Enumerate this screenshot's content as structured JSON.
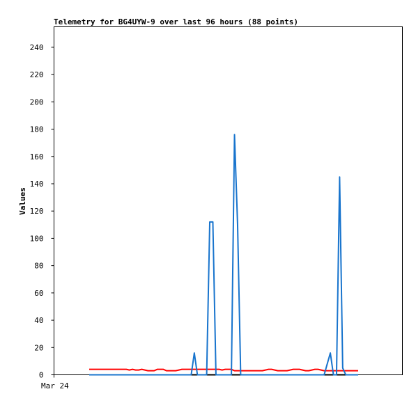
{
  "chart_data": {
    "type": "line",
    "title": "Telemetry for BG4UYW-9 over last 96 hours (88 points)",
    "xlabel": "",
    "ylabel": "Values",
    "x_tick_labels": [
      "Mar 24"
    ],
    "ylim": [
      0,
      255
    ],
    "yticks": [
      0,
      20,
      40,
      60,
      80,
      100,
      120,
      140,
      160,
      180,
      200,
      220,
      240
    ],
    "grid": false,
    "series": [
      {
        "color": "#000000",
        "values": [
          0,
          0,
          0,
          0,
          0,
          0,
          0,
          0,
          0,
          0,
          0,
          0,
          0,
          0,
          0,
          0,
          0,
          0,
          0,
          0,
          0,
          0,
          0,
          0,
          0,
          0,
          0,
          0,
          0,
          0,
          0,
          0,
          0,
          0,
          0,
          0,
          0,
          0,
          0,
          0,
          0,
          0,
          0,
          0,
          0,
          0,
          0,
          0,
          0,
          0,
          0,
          0,
          0,
          0,
          0,
          0,
          0,
          0,
          0,
          0,
          0,
          0,
          0,
          0,
          0,
          0,
          0,
          0,
          0,
          0,
          0,
          0,
          0,
          0,
          0,
          0,
          0,
          0,
          0,
          0,
          0,
          0,
          0,
          0,
          0,
          0,
          0,
          0
        ]
      },
      {
        "color": "#ff0000",
        "values": [
          4,
          4,
          4,
          4,
          4,
          4,
          4,
          4,
          4,
          4,
          4,
          4,
          4,
          3.5,
          4,
          3.5,
          3.5,
          4,
          3.5,
          3,
          3,
          3,
          4,
          4,
          4,
          3,
          3,
          3,
          3,
          3.5,
          4,
          4,
          4,
          4,
          4,
          4,
          4,
          4,
          4,
          4,
          4,
          4,
          4,
          3.5,
          4,
          4,
          4,
          3,
          3,
          3,
          3,
          3,
          3,
          3,
          3,
          3,
          3,
          3.5,
          4,
          4,
          3.5,
          3,
          3,
          3,
          3,
          3.5,
          4,
          4,
          4,
          3.5,
          3,
          3,
          3.5,
          4,
          4,
          3.5,
          3,
          3,
          3,
          3,
          3,
          3,
          3,
          3,
          3,
          3,
          3,
          3
        ]
      },
      {
        "color": "#1874cd",
        "values": [
          0,
          0,
          0,
          0,
          0,
          0,
          0,
          0,
          0,
          0,
          0,
          0,
          0,
          0,
          0,
          0,
          0,
          0,
          0,
          0,
          0,
          0,
          0,
          0,
          0,
          0,
          0,
          0,
          0,
          0,
          0,
          0,
          0,
          0,
          16,
          0,
          0,
          0,
          0,
          112,
          112,
          0,
          0,
          0,
          0,
          0,
          0,
          176,
          110,
          0,
          0,
          0,
          0,
          0,
          0,
          0,
          0,
          0,
          0,
          0,
          0,
          0,
          0,
          0,
          0,
          0,
          0,
          0,
          0,
          0,
          0,
          0,
          0,
          0,
          0,
          0,
          0,
          8,
          16,
          0,
          0,
          145,
          5,
          0,
          0,
          0,
          0,
          0
        ]
      }
    ]
  }
}
